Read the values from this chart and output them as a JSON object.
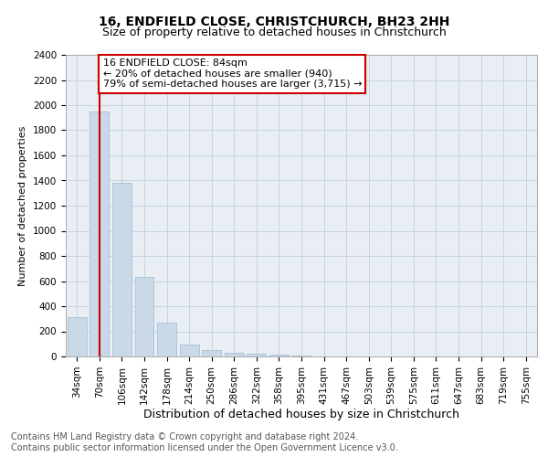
{
  "title": "16, ENDFIELD CLOSE, CHRISTCHURCH, BH23 2HH",
  "subtitle": "Size of property relative to detached houses in Christchurch",
  "xlabel": "Distribution of detached houses by size in Christchurch",
  "ylabel": "Number of detached properties",
  "bar_labels": [
    "34sqm",
    "70sqm",
    "106sqm",
    "142sqm",
    "178sqm",
    "214sqm",
    "250sqm",
    "286sqm",
    "322sqm",
    "358sqm",
    "395sqm",
    "431sqm",
    "467sqm",
    "503sqm",
    "539sqm",
    "575sqm",
    "611sqm",
    "647sqm",
    "683sqm",
    "719sqm",
    "755sqm"
  ],
  "bar_values": [
    310,
    1950,
    1380,
    630,
    270,
    95,
    50,
    30,
    20,
    15,
    10,
    0,
    0,
    0,
    0,
    0,
    0,
    0,
    0,
    0,
    0
  ],
  "bar_color": "#c9d9e8",
  "bar_edgecolor": "#a0b8ce",
  "property_line_x": 1.0,
  "property_line_color": "#cc0000",
  "annotation_box_text": "16 ENDFIELD CLOSE: 84sqm\n← 20% of detached houses are smaller (940)\n79% of semi-detached houses are larger (3,715) →",
  "annotation_box_color": "#cc0000",
  "ylim": [
    0,
    2400
  ],
  "yticks": [
    0,
    200,
    400,
    600,
    800,
    1000,
    1200,
    1400,
    1600,
    1800,
    2000,
    2200,
    2400
  ],
  "grid_color": "#c8d4e0",
  "bg_color": "#e8eef4",
  "footnote": "Contains HM Land Registry data © Crown copyright and database right 2024.\nContains public sector information licensed under the Open Government Licence v3.0.",
  "title_fontsize": 10,
  "subtitle_fontsize": 9,
  "xlabel_fontsize": 9,
  "ylabel_fontsize": 8,
  "tick_fontsize": 7.5,
  "annot_fontsize": 8,
  "footnote_fontsize": 7
}
